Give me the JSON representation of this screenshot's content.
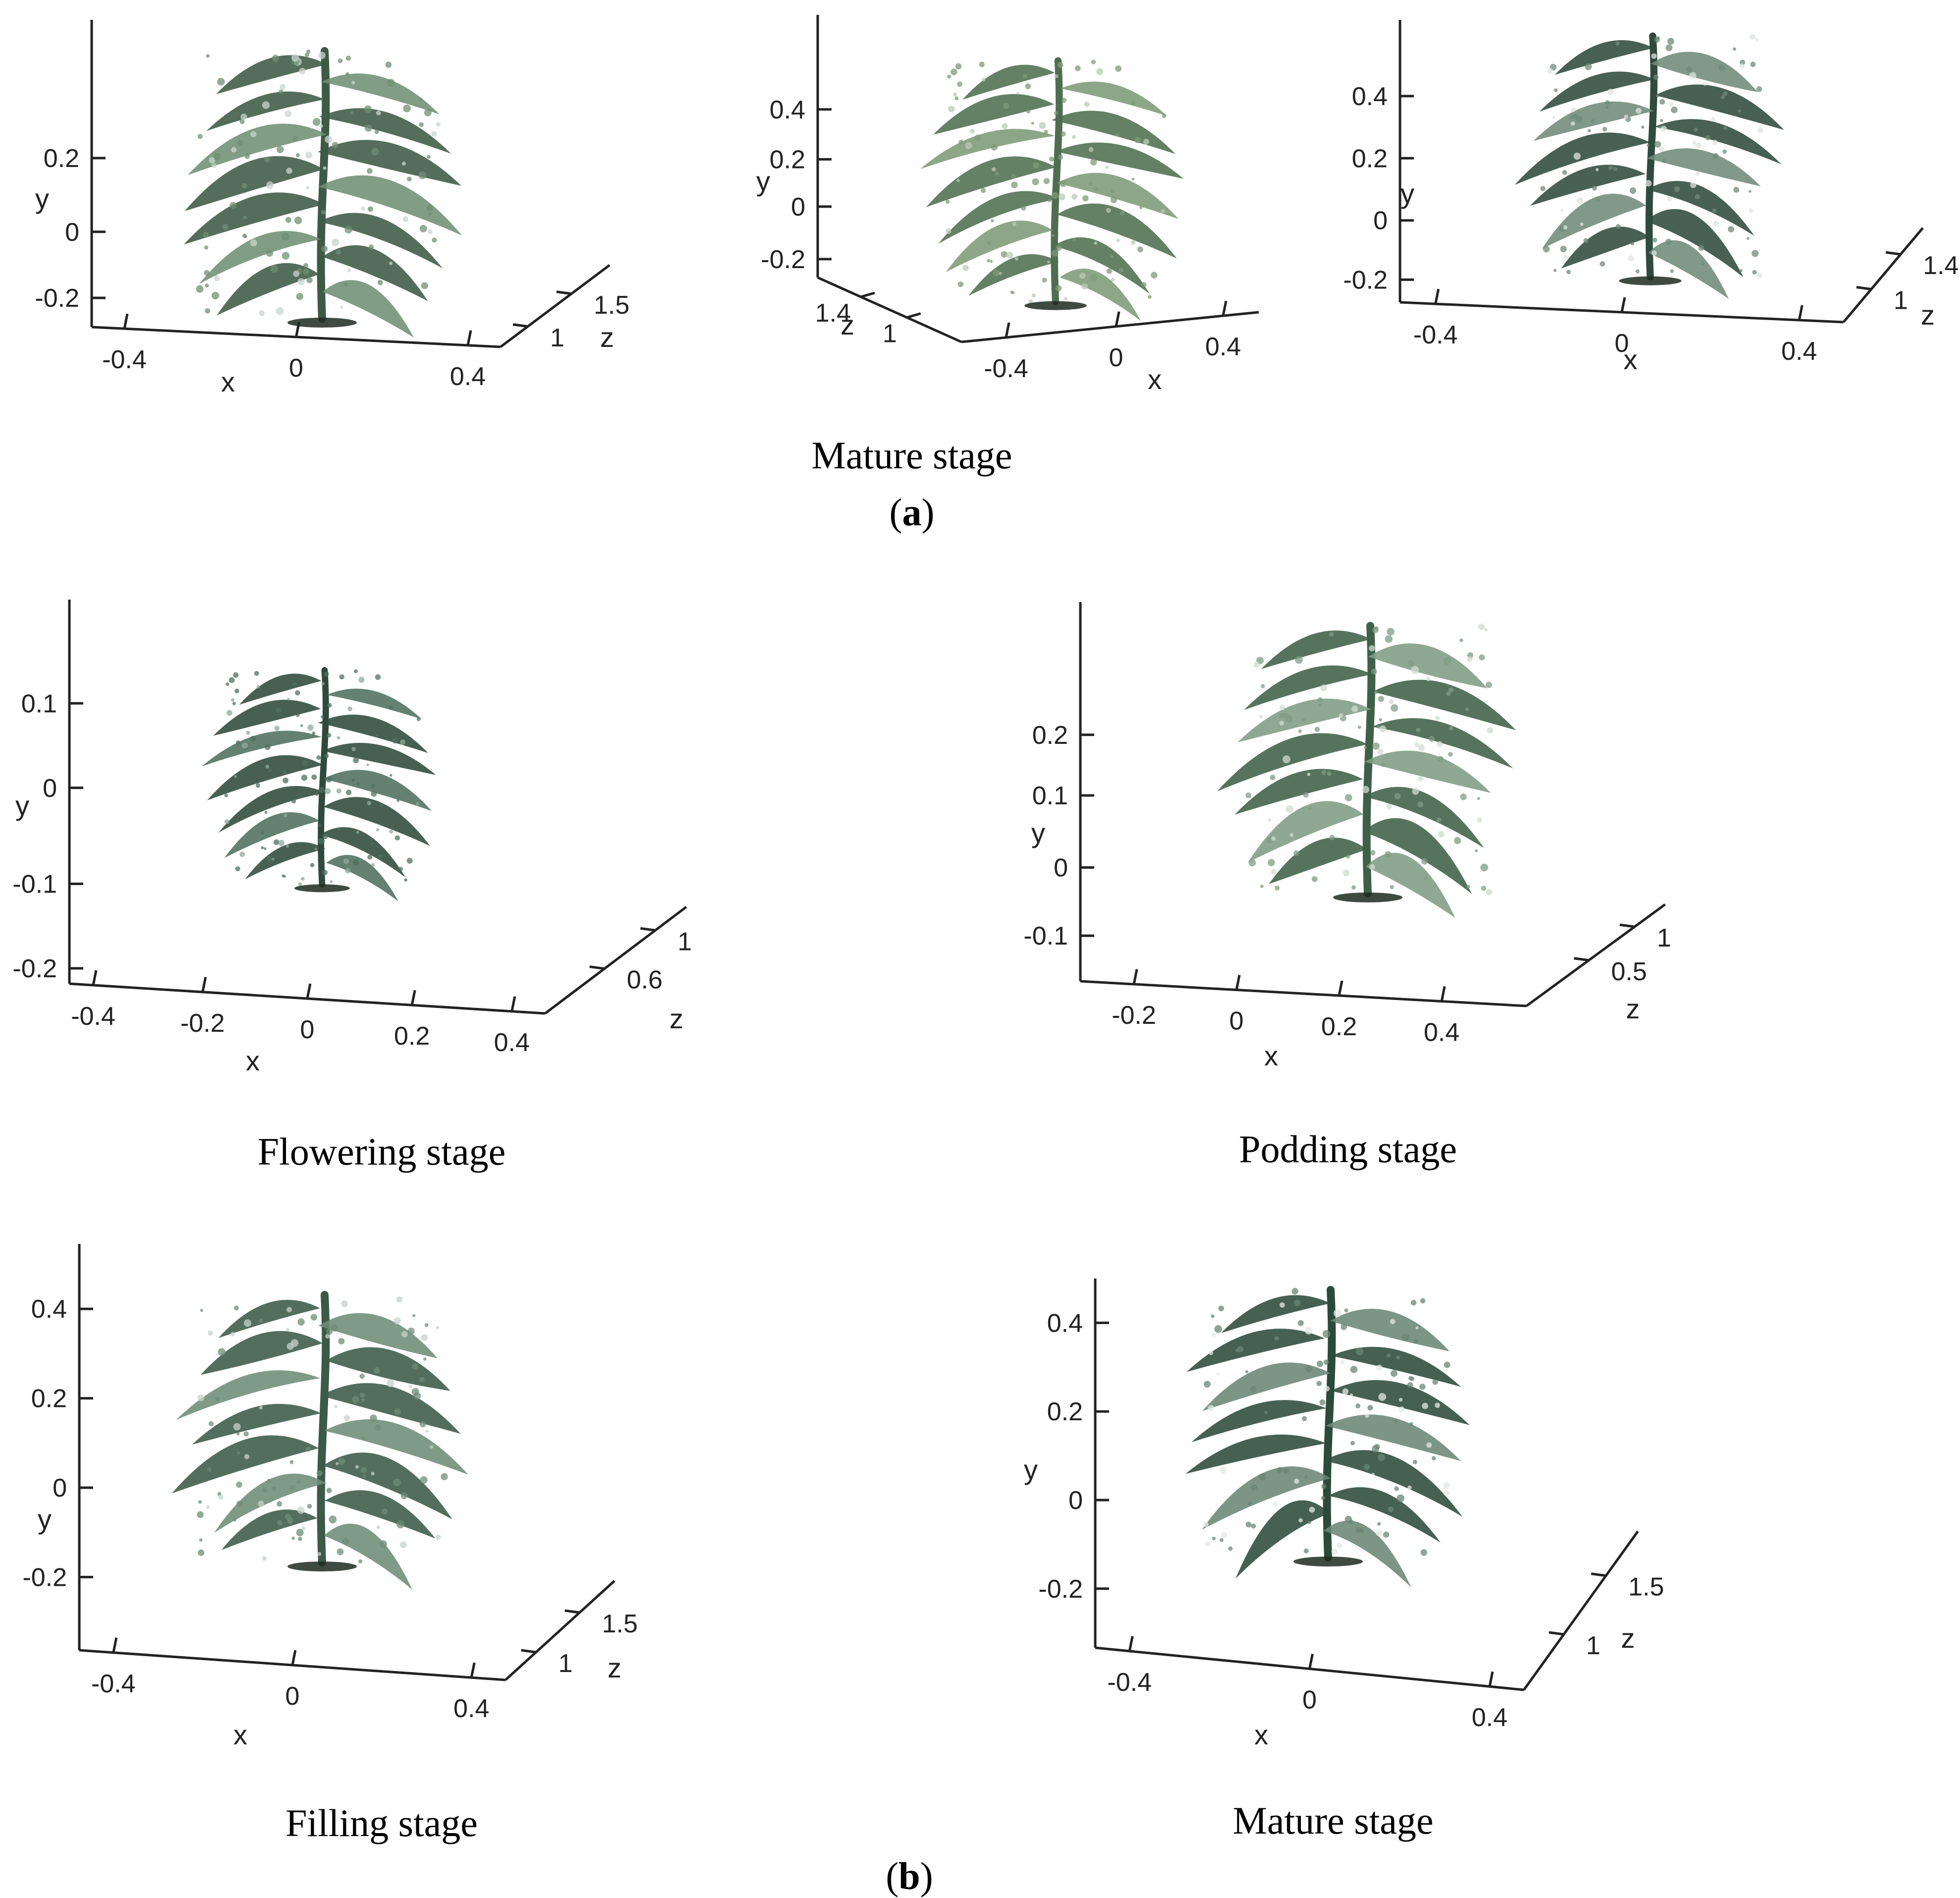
{
  "figure": {
    "part_a": {
      "label_open": "(",
      "label_letter": "a",
      "label_close": ")"
    },
    "part_b": {
      "label_open": "(",
      "label_letter": "b",
      "label_close": ")"
    }
  },
  "chart_data": [
    {
      "id": "a1",
      "type": "scatter",
      "title": "",
      "xlabel": "x",
      "ylabel": "y",
      "zlabel": "z",
      "x_ticks": [
        "-0.4",
        "0",
        "0.4"
      ],
      "y_ticks": [
        "-0.2",
        "0",
        "0.2"
      ],
      "z_ticks": [
        "1",
        "1.5"
      ],
      "colors": {
        "leaf_dark": "#3d5a45",
        "leaf_mid": "#6f8f74",
        "leaf_light": "#c9d6cf"
      }
    },
    {
      "id": "a2",
      "type": "scatter",
      "title": "",
      "xlabel": "x",
      "ylabel": "y",
      "zlabel": "z",
      "x_ticks": [
        "-0.4",
        "0",
        "0.4"
      ],
      "y_ticks": [
        "-0.2",
        "0",
        "0.2",
        "0.4"
      ],
      "z_ticks": [
        "1",
        "1.4"
      ],
      "colors": {
        "leaf_dark": "#4f6e50",
        "leaf_mid": "#7e9a78",
        "leaf_light": "#b9c9b5"
      }
    },
    {
      "id": "a3",
      "type": "scatter",
      "title": "",
      "xlabel": "x",
      "ylabel": "y",
      "zlabel": "z",
      "x_ticks": [
        "-0.4",
        "0",
        "0.4"
      ],
      "y_ticks": [
        "-0.2",
        "0",
        "0.2",
        "0.4"
      ],
      "z_ticks": [
        "1",
        "1.4"
      ],
      "colors": {
        "leaf_dark": "#2f4a3e",
        "leaf_mid": "#6f8a7a",
        "leaf_light": "#dde4e0"
      }
    },
    {
      "id": "b1",
      "type": "scatter",
      "title": "Flowering stage",
      "xlabel": "x",
      "ylabel": "y",
      "zlabel": "z",
      "x_ticks": [
        "-0.4",
        "-0.2",
        "0",
        "0.2",
        "0.4"
      ],
      "y_ticks": [
        "-0.2",
        "-0.1",
        "0",
        "0.1"
      ],
      "z_ticks": [
        "0.6",
        "1"
      ],
      "colors": {
        "leaf_dark": "#2f4a3c",
        "leaf_mid": "#4f7060",
        "leaf_light": "#8fa89a"
      }
    },
    {
      "id": "b2",
      "type": "scatter",
      "title": "Podding stage",
      "xlabel": "x",
      "ylabel": "y",
      "zlabel": "z",
      "x_ticks": [
        "-0.2",
        "0",
        "0.2",
        "0.4"
      ],
      "y_ticks": [
        "-0.1",
        "0",
        "0.1",
        "0.2"
      ],
      "z_ticks": [
        "0.5",
        "1"
      ],
      "colors": {
        "leaf_dark": "#3f6048",
        "leaf_mid": "#7f9c84",
        "leaf_light": "#cfdccf"
      }
    },
    {
      "id": "b3",
      "type": "scatter",
      "title": "Filling stage",
      "xlabel": "x",
      "ylabel": "y",
      "zlabel": "z",
      "x_ticks": [
        "-0.4",
        "0",
        "0.4"
      ],
      "y_ticks": [
        "-0.2",
        "0",
        "0.2",
        "0.4"
      ],
      "z_ticks": [
        "1",
        "1.5"
      ],
      "colors": {
        "leaf_dark": "#3b5a48",
        "leaf_mid": "#6e8c78",
        "leaf_light": "#c6d2cb"
      }
    },
    {
      "id": "b4",
      "type": "scatter",
      "title": "Mature stage",
      "xlabel": "x",
      "ylabel": "y",
      "zlabel": "z",
      "x_ticks": [
        "-0.4",
        "0",
        "0.4"
      ],
      "y_ticks": [
        "-0.2",
        "0",
        "0.2",
        "0.4"
      ],
      "z_ticks": [
        "1",
        "1.5"
      ],
      "colors": {
        "leaf_dark": "#2c4a3c",
        "leaf_mid": "#6a8676",
        "leaf_light": "#e2e8e4"
      }
    }
  ],
  "captions": {
    "a_title": "Mature stage"
  }
}
